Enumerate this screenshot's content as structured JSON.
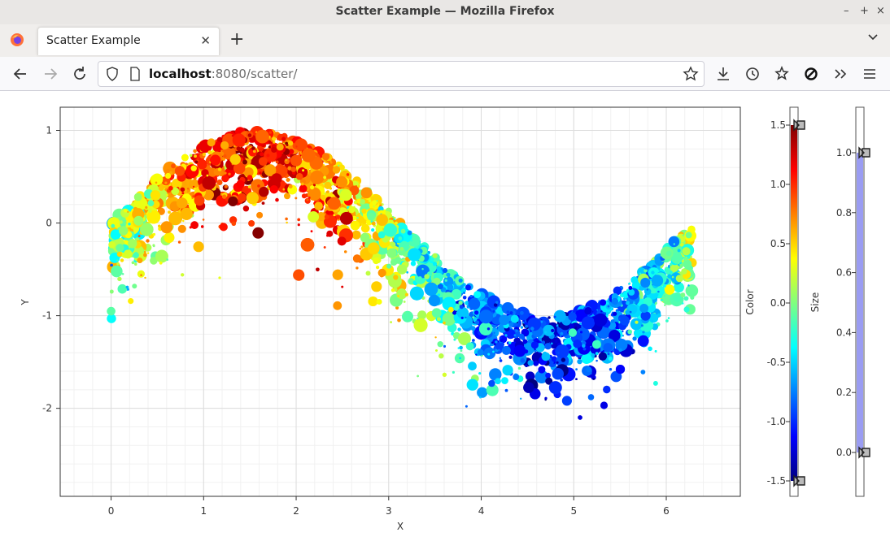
{
  "window": {
    "title": "Scatter Example — Mozilla Firefox"
  },
  "tab": {
    "label": "Scatter Example",
    "close_glyph": "✕",
    "new_glyph": "+"
  },
  "nav": {
    "url_host": "localhost",
    "url_path": ":8080/scatter/"
  },
  "chart_data": {
    "type": "scatter",
    "xlabel": "X",
    "ylabel": "Y",
    "xlim": [
      -0.55,
      6.8
    ],
    "ylim": [
      -2.95,
      1.25
    ],
    "xticks": [
      "0",
      "1",
      "2",
      "3",
      "4",
      "5",
      "6"
    ],
    "yticks": [
      "1",
      "0",
      "-1",
      "-2"
    ],
    "grid": true,
    "series_description": "points scattered around y = sin(x), x in [0, 2π]; color = sin(x) + noise on jet colormap, marker size random",
    "n_points": 3200,
    "color_axis": {
      "label": "Color",
      "range": [
        -1.5,
        1.5
      ],
      "ticks": [
        "1.5",
        "1.0",
        "0.5",
        "0.0",
        "-0.5",
        "-1.0",
        "-1.5"
      ],
      "colormap": "jet"
    },
    "size_axis": {
      "label": "Size",
      "range": [
        0.0,
        1.0
      ],
      "ticks": [
        "1.0",
        "0.8",
        "0.6",
        "0.4",
        "0.2",
        "0.0"
      ],
      "fill_color": "#9a9cf2"
    }
  }
}
